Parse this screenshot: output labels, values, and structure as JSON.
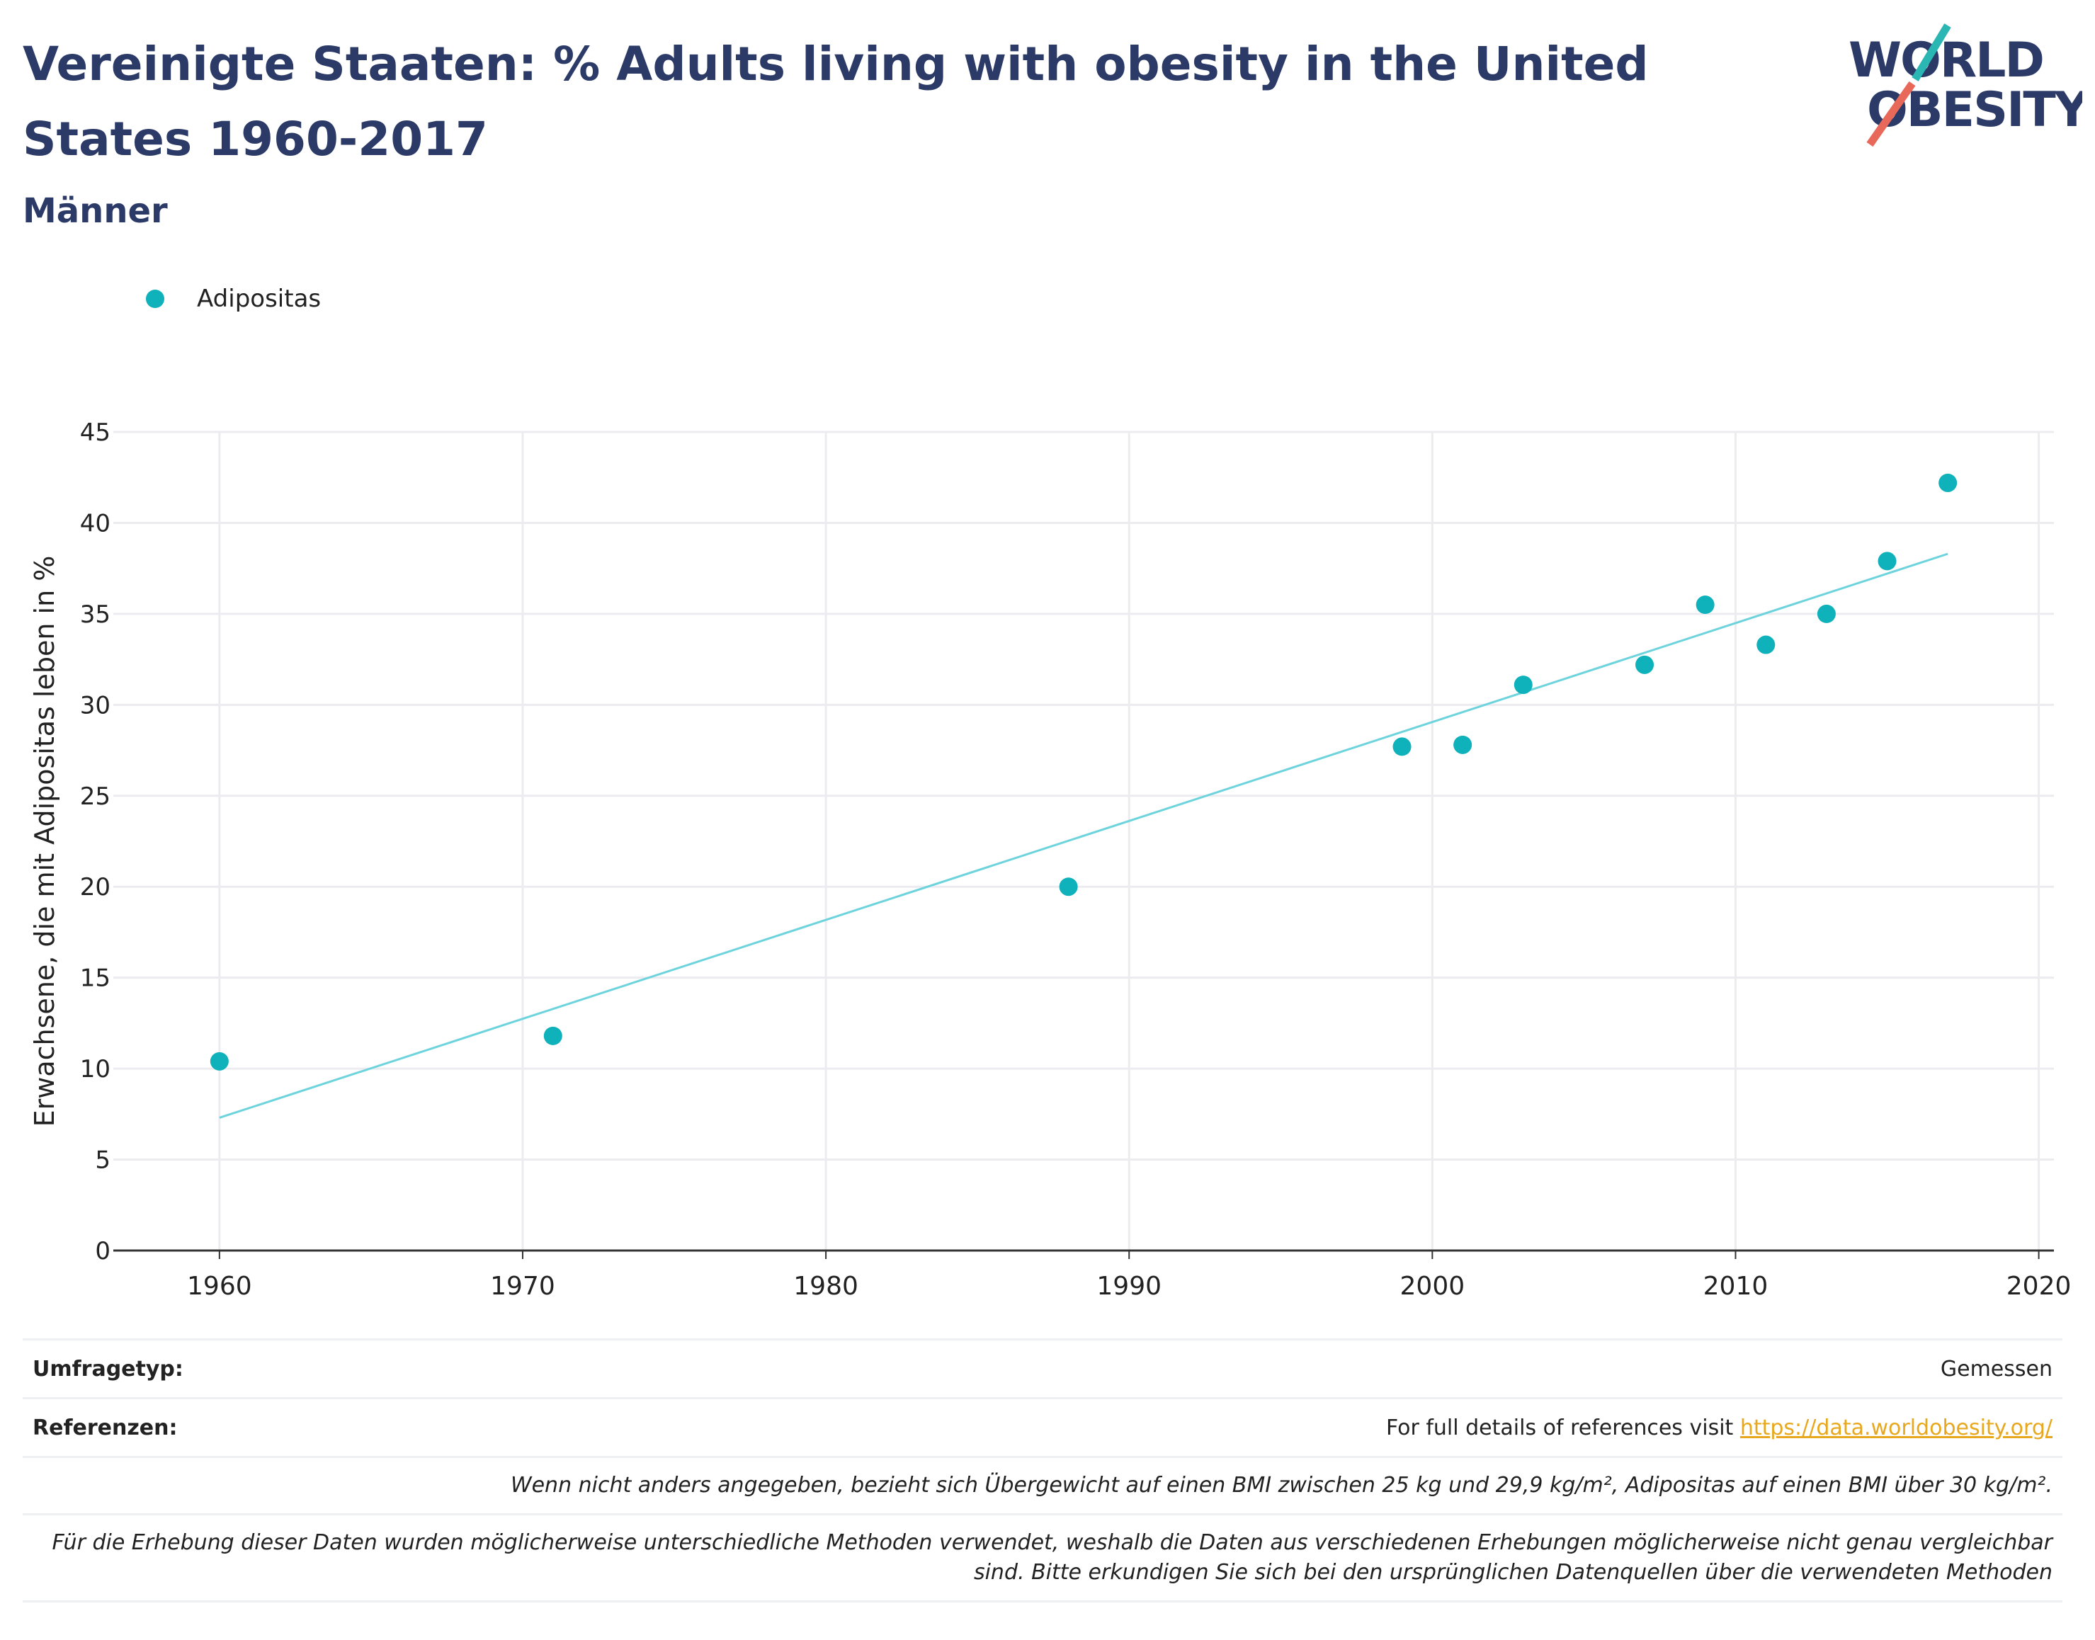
{
  "header": {
    "title": "Vereinigte Staaten: % Adults living with obesity in the United States 1960-2017",
    "subtitle": "Männer"
  },
  "logo": {
    "line1": "WORLD",
    "line2": "OBESITY",
    "accent_teal": "#2ab6b2",
    "accent_red": "#e8685a",
    "text_color": "#2b3a67"
  },
  "legend": {
    "label": "Adipositas",
    "color": "#0fb1bb"
  },
  "chart_data": {
    "type": "scatter",
    "title": "Vereinigte Staaten: % Adults living with obesity in the United States 1960-2017",
    "subtitle": "Männer",
    "xlabel": "",
    "ylabel": "Erwachsene, die mit Adipositas leben in %",
    "xlim": [
      1956.5,
      2020.5
    ],
    "ylim": [
      0,
      45
    ],
    "xticks": [
      1960,
      1970,
      1980,
      1990,
      2000,
      2010,
      2020
    ],
    "yticks": [
      0,
      5,
      10,
      15,
      20,
      25,
      30,
      35,
      40,
      45
    ],
    "grid": true,
    "legend_position": "top-left",
    "series": [
      {
        "name": "Adipositas",
        "color": "#0fb1bb",
        "x": [
          1960,
          1971,
          1988,
          1999,
          2001,
          2003,
          2007,
          2009,
          2011,
          2013,
          2015,
          2017
        ],
        "y": [
          10.4,
          11.8,
          20.0,
          27.7,
          27.8,
          31.1,
          32.2,
          35.5,
          33.3,
          35.0,
          37.9,
          42.2
        ]
      }
    ],
    "trendline": {
      "color": "#6dd3dc",
      "x": [
        1960,
        2017
      ],
      "y": [
        7.3,
        38.3
      ]
    }
  },
  "footer": {
    "survey_type_label": "Umfragetyp:",
    "survey_type_value": "Gemessen",
    "references_label": "Referenzen:",
    "references_text": "For full details of references visit",
    "references_link": "https://data.worldobesity.org/",
    "note1": "Wenn nicht anders angegeben, bezieht sich Übergewicht auf einen BMI zwischen 25 kg und 29,9 kg/m², Adipositas auf einen BMI über 30 kg/m².",
    "note2": "Für die Erhebung dieser Daten wurden möglicherweise unterschiedliche Methoden verwendet, weshalb die Daten aus verschiedenen Erhebungen möglicherweise nicht genau vergleichbar sind. Bitte erkundigen Sie sich bei den ursprünglichen Datenquellen über die verwendeten Methoden"
  }
}
